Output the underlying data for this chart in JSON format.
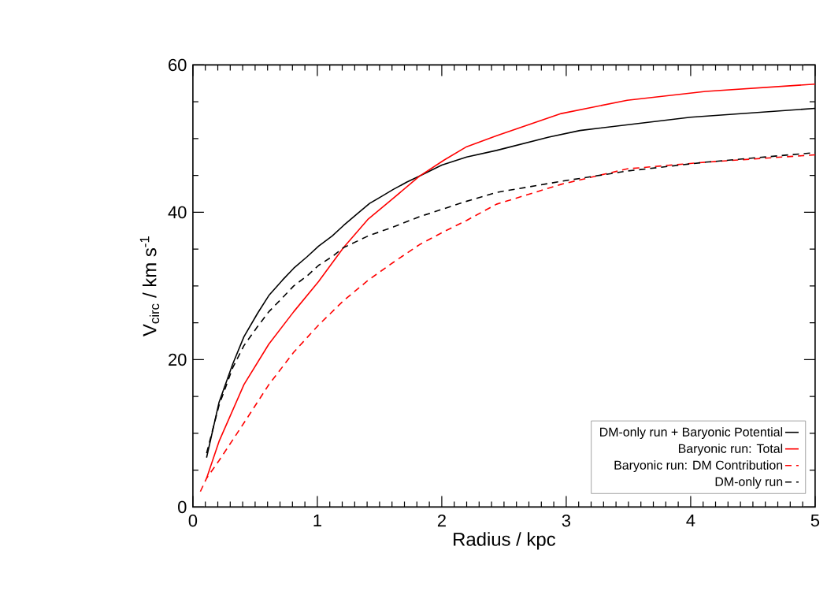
{
  "chart_data": {
    "type": "line",
    "xlabel": "Radius / kpc",
    "ylabel": "V$_{circ}$ / km s$^{-1}$",
    "xlim": [
      0,
      5
    ],
    "ylim": [
      0,
      60
    ],
    "xticks": [
      0,
      1,
      2,
      3,
      4,
      5
    ],
    "yticks": [
      0,
      20,
      40,
      60
    ],
    "legend": "bottom right",
    "grid": false,
    "marker": "none",
    "series": [
      {
        "name": "DM-only run + Baryonic Potential",
        "color": "#000000",
        "line_style": "solid",
        "x": [
          0.11,
          0.21,
          0.32,
          0.41,
          0.52,
          0.61,
          0.72,
          0.81,
          0.92,
          1.01,
          1.12,
          1.21,
          1.32,
          1.42,
          1.52,
          1.61,
          1.72,
          1.82,
          2.0,
          2.2,
          2.44,
          2.86,
          3.11,
          4.0,
          5.0
        ],
        "values": [
          6.7,
          14.2,
          19.4,
          23.1,
          26.3,
          28.7,
          30.8,
          32.4,
          34.0,
          35.4,
          36.8,
          38.2,
          39.8,
          41.2,
          42.2,
          43.1,
          44.1,
          44.9,
          46.4,
          47.5,
          48.4,
          50.2,
          51.1,
          52.9,
          54.1
        ]
      },
      {
        "name": "Baryonic run: Total",
        "color": "#ff0000",
        "line_style": "solid",
        "x": [
          0.11,
          0.21,
          0.41,
          0.61,
          0.81,
          1.01,
          1.21,
          1.41,
          1.61,
          1.82,
          2.02,
          2.2,
          2.44,
          2.96,
          3.49,
          4.12,
          5.0
        ],
        "values": [
          3.9,
          8.9,
          16.6,
          22.1,
          26.5,
          30.6,
          35.2,
          39.1,
          41.9,
          44.9,
          47.1,
          48.9,
          50.4,
          53.4,
          55.2,
          56.4,
          57.4
        ]
      },
      {
        "name": "Baryonic run: DM Contribution",
        "color": "#ff0000",
        "line_style": "dashed",
        "x": [
          0.06,
          0.11,
          0.21,
          0.41,
          0.61,
          0.81,
          1.01,
          1.21,
          1.41,
          1.61,
          1.82,
          2.02,
          2.2,
          2.44,
          2.96,
          3.49,
          4.12,
          5.0
        ],
        "values": [
          2.1,
          3.9,
          6.3,
          11.4,
          16.6,
          21.0,
          24.7,
          28.0,
          30.8,
          33.2,
          35.6,
          37.4,
          38.9,
          41.1,
          43.8,
          45.9,
          46.8,
          47.8
        ]
      },
      {
        "name": "DM-only run",
        "color": "#000000",
        "line_style": "dashed",
        "x": [
          0.11,
          0.21,
          0.32,
          0.41,
          0.52,
          0.61,
          0.72,
          0.81,
          0.92,
          1.01,
          1.12,
          1.21,
          1.41,
          1.61,
          1.82,
          2.02,
          2.2,
          2.44,
          2.96,
          3.49,
          4.12,
          5.0
        ],
        "values": [
          7.3,
          13.8,
          18.9,
          21.9,
          24.5,
          26.5,
          28.4,
          30.0,
          31.4,
          32.8,
          34.0,
          35.2,
          36.8,
          38.0,
          39.4,
          40.5,
          41.5,
          42.7,
          44.2,
          45.6,
          46.8,
          48.1
        ]
      }
    ]
  }
}
